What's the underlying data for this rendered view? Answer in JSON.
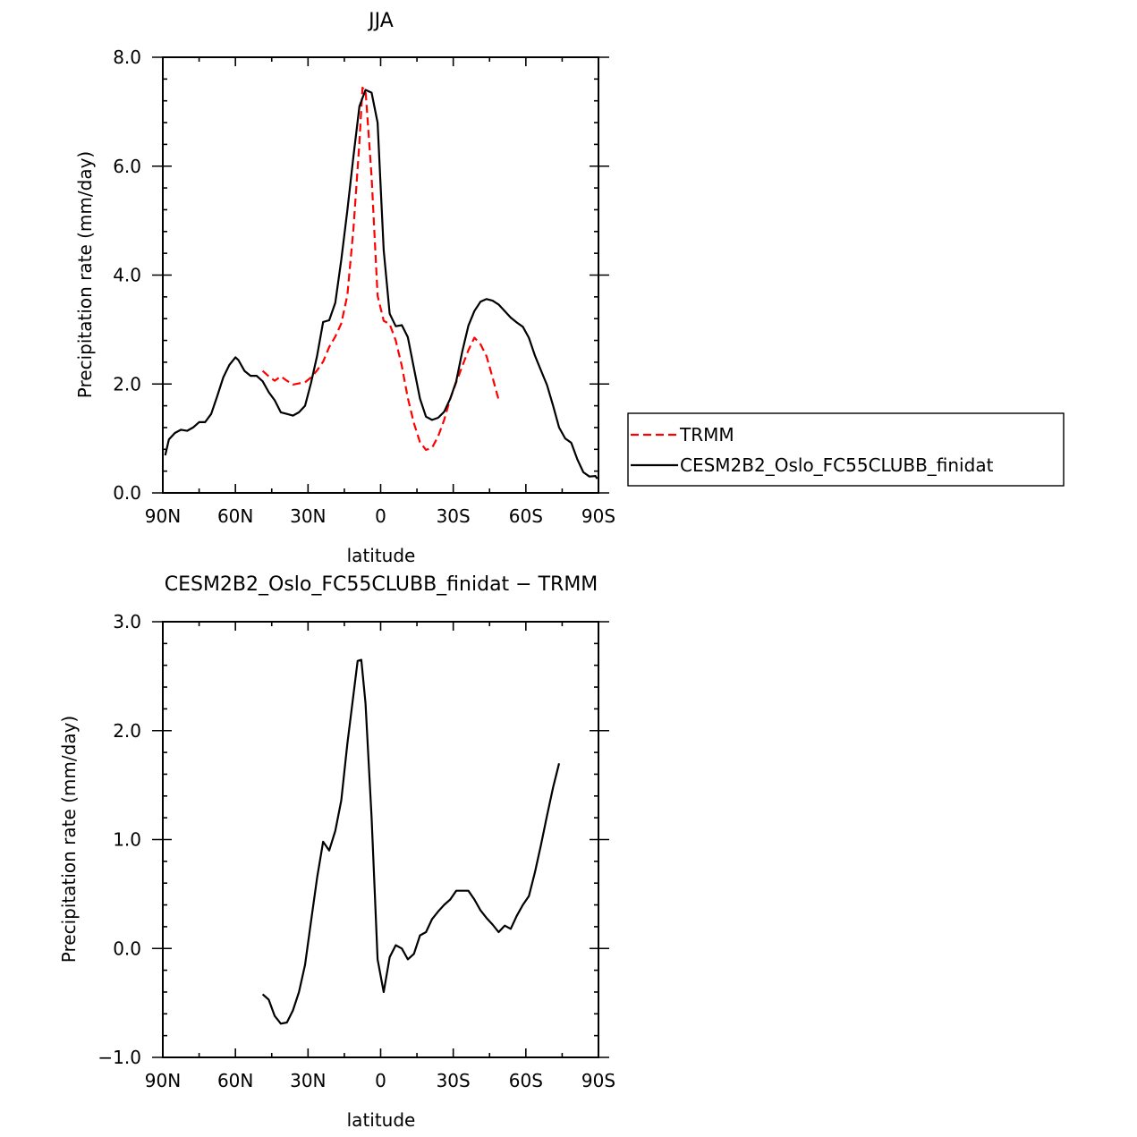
{
  "chart_data": [
    {
      "type": "line",
      "title": "JJA",
      "xlabel": "latitude",
      "ylabel": "Precipitation rate (mm/day)",
      "xlim": [
        90,
        -90
      ],
      "ylim": [
        0.0,
        8.0
      ],
      "xticks": [
        90,
        60,
        30,
        0,
        -30,
        -60,
        -90
      ],
      "xtick_labels": [
        "90N",
        "60N",
        "30N",
        "0",
        "30S",
        "60S",
        "90S"
      ],
      "yticks": [
        0.0,
        2.0,
        4.0,
        6.0,
        8.0
      ],
      "ytick_labels": [
        "0.0",
        "2.0",
        "4.0",
        "6.0",
        "8.0"
      ],
      "grid": false,
      "legend_position": "right",
      "series": [
        {
          "name": "TRMM",
          "color": "#ff0000",
          "dash": "dashed",
          "points": [
            [
              48.75,
              2.24
            ],
            [
              46.25,
              2.14
            ],
            [
              43.75,
              2.06
            ],
            [
              41.25,
              2.14
            ],
            [
              38.75,
              2.06
            ],
            [
              36.25,
              1.99
            ],
            [
              33.75,
              2.01
            ],
            [
              31.25,
              2.03
            ],
            [
              28.75,
              2.12
            ],
            [
              26.25,
              2.25
            ],
            [
              23.75,
              2.41
            ],
            [
              21.25,
              2.68
            ],
            [
              18.75,
              2.87
            ],
            [
              16.25,
              3.11
            ],
            [
              13.75,
              3.63
            ],
            [
              11.25,
              4.85
            ],
            [
              8.75,
              6.44
            ],
            [
              7.5,
              7.44
            ],
            [
              6.25,
              7.4
            ],
            [
              3.75,
              5.8
            ],
            [
              1.25,
              3.62
            ],
            [
              -1.25,
              3.16
            ],
            [
              -3.75,
              3.1
            ],
            [
              -6.25,
              2.8
            ],
            [
              -8.75,
              2.33
            ],
            [
              -11.25,
              1.74
            ],
            [
              -13.75,
              1.28
            ],
            [
              -16.25,
              0.93
            ],
            [
              -18.75,
              0.79
            ],
            [
              -21.25,
              0.83
            ],
            [
              -23.75,
              1.04
            ],
            [
              -26.25,
              1.34
            ],
            [
              -28.75,
              1.73
            ],
            [
              -31.25,
              2.03
            ],
            [
              -33.75,
              2.33
            ],
            [
              -36.25,
              2.62
            ],
            [
              -38.75,
              2.85
            ],
            [
              -41.25,
              2.73
            ],
            [
              -43.75,
              2.51
            ],
            [
              -46.25,
              2.12
            ],
            [
              -48.75,
              1.71
            ]
          ]
        },
        {
          "name": "CESM2B2_Oslo_FC55CLUBB_finidat",
          "color": "#000000",
          "dash": "solid",
          "points": [
            [
              89.0,
              0.69
            ],
            [
              87.5,
              0.98
            ],
            [
              85.0,
              1.1
            ],
            [
              82.5,
              1.16
            ],
            [
              80.0,
              1.14
            ],
            [
              77.5,
              1.2
            ],
            [
              75.0,
              1.3
            ],
            [
              72.5,
              1.3
            ],
            [
              70.0,
              1.45
            ],
            [
              67.5,
              1.78
            ],
            [
              65.0,
              2.12
            ],
            [
              62.5,
              2.35
            ],
            [
              60.0,
              2.49
            ],
            [
              58.75,
              2.44
            ],
            [
              56.25,
              2.24
            ],
            [
              53.75,
              2.15
            ],
            [
              51.25,
              2.15
            ],
            [
              48.75,
              2.05
            ],
            [
              46.25,
              1.85
            ],
            [
              43.75,
              1.7
            ],
            [
              41.25,
              1.48
            ],
            [
              38.75,
              1.45
            ],
            [
              36.25,
              1.42
            ],
            [
              33.75,
              1.48
            ],
            [
              31.25,
              1.6
            ],
            [
              28.75,
              2.02
            ],
            [
              26.25,
              2.52
            ],
            [
              23.75,
              3.14
            ],
            [
              21.25,
              3.17
            ],
            [
              18.75,
              3.49
            ],
            [
              16.25,
              4.28
            ],
            [
              13.75,
              5.19
            ],
            [
              11.25,
              6.18
            ],
            [
              8.75,
              7.1
            ],
            [
              6.25,
              7.4
            ],
            [
              3.75,
              7.35
            ],
            [
              1.25,
              6.8
            ],
            [
              -1.25,
              4.46
            ],
            [
              -3.75,
              3.29
            ],
            [
              -6.25,
              3.06
            ],
            [
              -8.75,
              3.08
            ],
            [
              -11.25,
              2.86
            ],
            [
              -13.75,
              2.29
            ],
            [
              -16.25,
              1.73
            ],
            [
              -18.75,
              1.4
            ],
            [
              -21.25,
              1.34
            ],
            [
              -23.75,
              1.38
            ],
            [
              -26.25,
              1.49
            ],
            [
              -28.75,
              1.73
            ],
            [
              -31.25,
              2.05
            ],
            [
              -33.75,
              2.6
            ],
            [
              -36.25,
              3.07
            ],
            [
              -38.75,
              3.34
            ],
            [
              -41.25,
              3.51
            ],
            [
              -43.75,
              3.56
            ],
            [
              -46.25,
              3.53
            ],
            [
              -48.75,
              3.46
            ],
            [
              -51.25,
              3.34
            ],
            [
              -53.75,
              3.22
            ],
            [
              -56.25,
              3.13
            ],
            [
              -58.75,
              3.05
            ],
            [
              -61.25,
              2.85
            ],
            [
              -63.75,
              2.52
            ],
            [
              -66.25,
              2.25
            ],
            [
              -68.75,
              1.98
            ],
            [
              -71.25,
              1.6
            ],
            [
              -73.75,
              1.2
            ],
            [
              -76.25,
              1.0
            ],
            [
              -78.75,
              0.92
            ],
            [
              -81.25,
              0.62
            ],
            [
              -83.75,
              0.38
            ],
            [
              -86.25,
              0.3
            ],
            [
              -88.75,
              0.31
            ],
            [
              -89.5,
              0.26
            ]
          ]
        }
      ]
    },
    {
      "type": "line",
      "title": "CESM2B2_Oslo_FC55CLUBB_finidat − TRMM",
      "xlabel": "latitude",
      "ylabel": "Precipitation rate (mm/day)",
      "xlim": [
        90,
        -90
      ],
      "ylim": [
        -1.0,
        3.0
      ],
      "xticks": [
        90,
        60,
        30,
        0,
        -30,
        -60,
        -90
      ],
      "xtick_labels": [
        "90N",
        "60N",
        "30N",
        "0",
        "30S",
        "60S",
        "90S"
      ],
      "yticks": [
        -1.0,
        0.0,
        1.0,
        2.0,
        3.0
      ],
      "ytick_labels": [
        "−1.0",
        "0.0",
        "1.0",
        "2.0",
        "3.0"
      ],
      "grid": false,
      "series": [
        {
          "color": "#000000",
          "dash": "solid",
          "points": [
            [
              48.75,
              -0.42
            ],
            [
              46.25,
              -0.47
            ],
            [
              43.75,
              -0.62
            ],
            [
              41.25,
              -0.69
            ],
            [
              38.75,
              -0.68
            ],
            [
              36.25,
              -0.57
            ],
            [
              33.75,
              -0.4
            ],
            [
              31.25,
              -0.15
            ],
            [
              28.75,
              0.25
            ],
            [
              26.25,
              0.65
            ],
            [
              23.75,
              0.98
            ],
            [
              21.25,
              0.9
            ],
            [
              18.75,
              1.08
            ],
            [
              16.25,
              1.36
            ],
            [
              13.75,
              1.88
            ],
            [
              11.25,
              2.33
            ],
            [
              9.5,
              2.64
            ],
            [
              8.0,
              2.65
            ],
            [
              6.25,
              2.25
            ],
            [
              3.75,
              1.2
            ],
            [
              1.25,
              -0.1
            ],
            [
              -1.25,
              -0.4
            ],
            [
              -3.75,
              -0.08
            ],
            [
              -6.25,
              0.03
            ],
            [
              -8.75,
              0.0
            ],
            [
              -11.25,
              -0.1
            ],
            [
              -13.75,
              -0.05
            ],
            [
              -16.25,
              0.12
            ],
            [
              -18.75,
              0.15
            ],
            [
              -21.25,
              0.27
            ],
            [
              -23.75,
              0.34
            ],
            [
              -26.25,
              0.4
            ],
            [
              -28.75,
              0.45
            ],
            [
              -31.25,
              0.53
            ],
            [
              -33.75,
              0.53
            ],
            [
              -36.25,
              0.53
            ],
            [
              -38.75,
              0.45
            ],
            [
              -41.25,
              0.35
            ],
            [
              -43.75,
              0.28
            ],
            [
              -46.25,
              0.22
            ],
            [
              -48.75,
              0.15
            ],
            [
              -51.25,
              0.21
            ],
            [
              -53.75,
              0.18
            ],
            [
              -56.25,
              0.3
            ],
            [
              -58.75,
              0.4
            ],
            [
              -61.25,
              0.48
            ],
            [
              -63.75,
              0.7
            ],
            [
              -66.25,
              0.95
            ],
            [
              -68.75,
              1.22
            ],
            [
              -71.25,
              1.48
            ],
            [
              -73.75,
              1.7
            ]
          ]
        }
      ]
    }
  ]
}
